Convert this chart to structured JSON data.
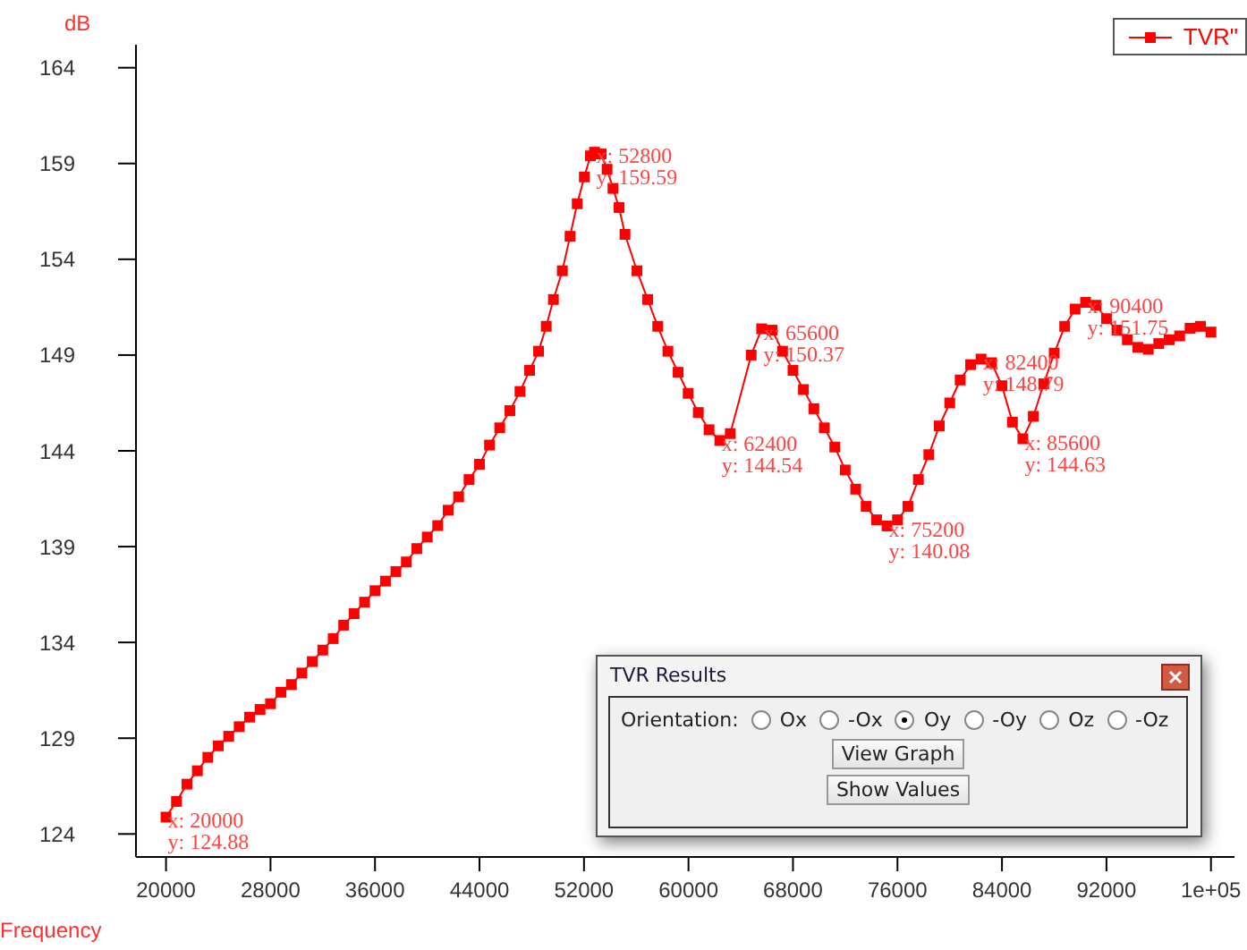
{
  "chart_data": {
    "type": "line",
    "xlabel": "Frequency",
    "ylabel": "dB",
    "legend": "top right",
    "grid": false,
    "marker": "square",
    "line_style": "solid",
    "xlim": [
      17700,
      101800
    ],
    "ylim": [
      122.8,
      165.2
    ],
    "xticks": [
      20000,
      28000,
      36000,
      44000,
      52000,
      60000,
      68000,
      76000,
      84000,
      92000,
      {
        "value": 100000,
        "label": "1e+05"
      }
    ],
    "yticks": [
      124,
      129,
      134,
      139,
      144,
      149,
      154,
      159,
      164
    ],
    "x": [
      20000,
      20800,
      21600,
      22400,
      23200,
      24000,
      24800,
      25600,
      26400,
      27200,
      28000,
      28800,
      29600,
      30400,
      31200,
      32000,
      32800,
      33600,
      34400,
      35200,
      36000,
      36800,
      37600,
      38400,
      39200,
      40000,
      40800,
      41600,
      42400,
      43200,
      44000,
      44767,
      45548,
      46326,
      47100,
      47836,
      48521,
      49110,
      49658,
      50342,
      50932,
      51479,
      52027,
      52493,
      52800,
      53315,
      53767,
      54219,
      54685,
      55137,
      56055,
      56877,
      57644,
      58425,
      59205,
      59973,
      60753,
      61575,
      62400,
      63200,
      64800,
      65600,
      66400,
      67200,
      68000,
      68800,
      69600,
      70400,
      71200,
      72000,
      72800,
      73600,
      74400,
      75200,
      76000,
      76800,
      77600,
      78400,
      79200,
      80000,
      80800,
      81600,
      82400,
      83200,
      84000,
      84800,
      85600,
      86400,
      87200,
      88000,
      88800,
      89600,
      90400,
      91200,
      92000,
      92800,
      93600,
      94400,
      95200,
      96000,
      96800,
      97600,
      98400,
      99200,
      100000
    ],
    "series": [
      {
        "name": "TVR\"",
        "color": "#ff0000",
        "values": [
          124.88,
          125.7,
          126.6,
          127.3,
          128.0,
          128.6,
          129.1,
          129.6,
          130.1,
          130.5,
          130.8,
          131.4,
          131.8,
          132.4,
          133.0,
          133.6,
          134.2,
          134.9,
          135.5,
          136.1,
          136.7,
          137.2,
          137.7,
          138.2,
          138.9,
          139.5,
          140.1,
          140.9,
          141.6,
          142.5,
          143.3,
          144.3,
          145.2,
          146.1,
          147.1,
          148.2,
          149.2,
          150.5,
          151.9,
          153.4,
          155.2,
          156.9,
          158.3,
          159.4,
          159.59,
          159.5,
          158.7,
          157.7,
          156.7,
          155.3,
          153.4,
          151.9,
          150.5,
          149.2,
          148.1,
          147.0,
          146.0,
          145.1,
          144.54,
          144.9,
          149.0,
          150.37,
          150.3,
          149.2,
          148.2,
          147.2,
          146.2,
          145.2,
          144.2,
          143.0,
          142.0,
          141.1,
          140.4,
          140.08,
          140.4,
          141.1,
          142.5,
          143.8,
          145.3,
          146.5,
          147.7,
          148.5,
          148.79,
          148.6,
          147.4,
          145.5,
          144.63,
          145.8,
          147.5,
          149.1,
          150.5,
          151.4,
          151.75,
          151.6,
          150.9,
          150.3,
          149.8,
          149.4,
          149.3,
          149.6,
          149.8,
          150.0,
          150.4,
          150.5,
          150.2
        ]
      }
    ],
    "annotations": [
      {
        "text": "x: 20000\ny: 124.88",
        "x": 20000,
        "y": 124.88
      },
      {
        "text": "x: 52800\ny: 159.59",
        "x": 52800,
        "y": 159.59
      },
      {
        "text": "x: 62400\ny: 144.54",
        "x": 62400,
        "y": 144.54
      },
      {
        "text": "x: 65600\ny: 150.37",
        "x": 65600,
        "y": 150.37
      },
      {
        "text": "x: 75200\ny: 140.08",
        "x": 75200,
        "y": 140.08
      },
      {
        "text": "x: 82400\ny: 148.79",
        "x": 82400,
        "y": 148.79
      },
      {
        "text": "x: 85600\ny: 144.63",
        "x": 85600,
        "y": 144.63
      },
      {
        "text": "x: 90400\ny: 151.75",
        "x": 90400,
        "y": 151.75
      },
      "TVR Results",
      "Orientation:",
      "Ox",
      "-Ox",
      "Oy",
      "-Oy",
      "Oz",
      "-Oz",
      "View Graph",
      "Show Values"
    ]
  }
}
